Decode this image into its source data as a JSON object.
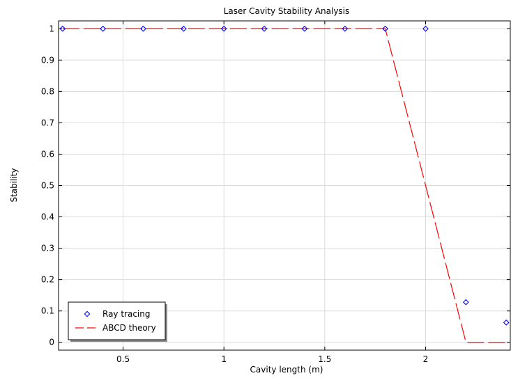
{
  "chart_data": {
    "type": "line",
    "title": "Laser Cavity Stability Analysis",
    "xlabel": "Cavity length (m)",
    "ylabel": "Stability",
    "xlim": [
      0.18,
      2.42
    ],
    "ylim": [
      -0.025,
      1.025
    ],
    "xticks": [
      0.5,
      1,
      1.5,
      2
    ],
    "xtick_labels": [
      "0.5",
      "1",
      "1.5",
      "2"
    ],
    "yticks": [
      0,
      0.1,
      0.2,
      0.3,
      0.4,
      0.5,
      0.6,
      0.7,
      0.8,
      0.9,
      1
    ],
    "ytick_labels": [
      "0",
      "0.1",
      "0.2",
      "0.3",
      "0.4",
      "0.5",
      "0.6",
      "0.7",
      "0.8",
      "0.9",
      "1"
    ],
    "grid": true,
    "legend_position": "bottom-left",
    "series": [
      {
        "name": "Ray tracing",
        "style": "markers",
        "marker": "diamond",
        "color": "#0000ff",
        "x": [
          0.2,
          0.4,
          0.6,
          0.8,
          1.0,
          1.2,
          1.4,
          1.6,
          1.8,
          2.0,
          2.2,
          2.4
        ],
        "y": [
          1,
          1,
          1,
          1,
          1,
          1,
          1,
          1,
          1,
          1,
          0.128,
          0.063
        ]
      },
      {
        "name": "ABCD theory",
        "style": "dashed-line",
        "color": "#ff0000",
        "x": [
          0.2,
          0.4,
          0.6,
          0.8,
          1.0,
          1.2,
          1.4,
          1.6,
          1.8,
          2.0,
          2.2,
          2.4
        ],
        "y": [
          1,
          1,
          1,
          1,
          1,
          1,
          1,
          1,
          1,
          0.5,
          0,
          0
        ]
      }
    ]
  }
}
